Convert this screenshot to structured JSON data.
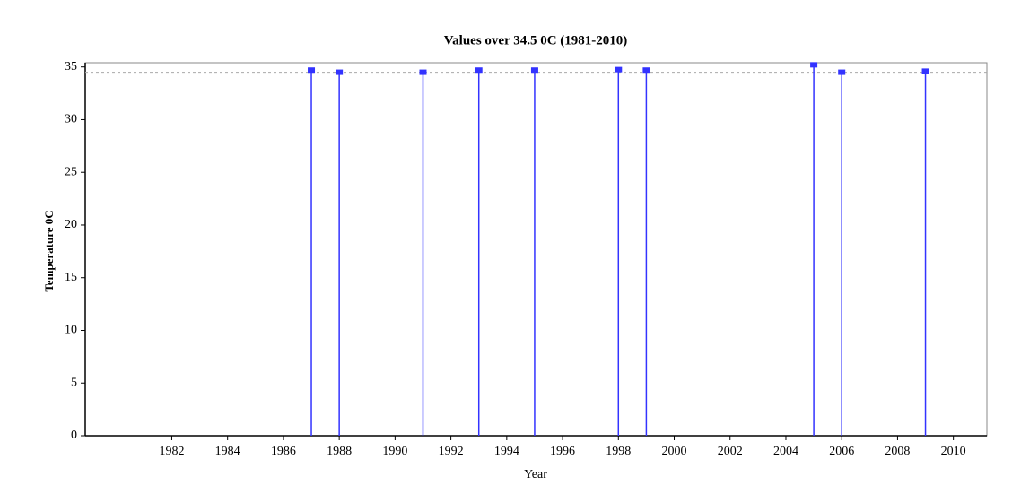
{
  "chart_data": {
    "type": "stem",
    "title": "Values over 34.5 0C (1981-2010)",
    "x_label": "Year",
    "y_label": "Temperature 0C",
    "x": [
      1987,
      1988,
      1991,
      1993,
      1995,
      1998,
      1999,
      2005,
      2006,
      2009
    ],
    "values": [
      34.7,
      34.5,
      34.5,
      34.7,
      34.7,
      34.75,
      34.7,
      35.2,
      34.5,
      34.6
    ],
    "color": "#3333ff",
    "threshold": 34.5,
    "xlim": [
      1978.9,
      2011.2
    ],
    "xticks": [
      1982,
      1984,
      1986,
      1988,
      1990,
      1992,
      1994,
      1996,
      1998,
      2000,
      2002,
      2004,
      2006,
      2008,
      2010
    ],
    "ylim": [
      0,
      35.4
    ],
    "yticks": [
      0,
      5,
      10,
      15,
      20,
      25,
      30,
      35
    ]
  }
}
